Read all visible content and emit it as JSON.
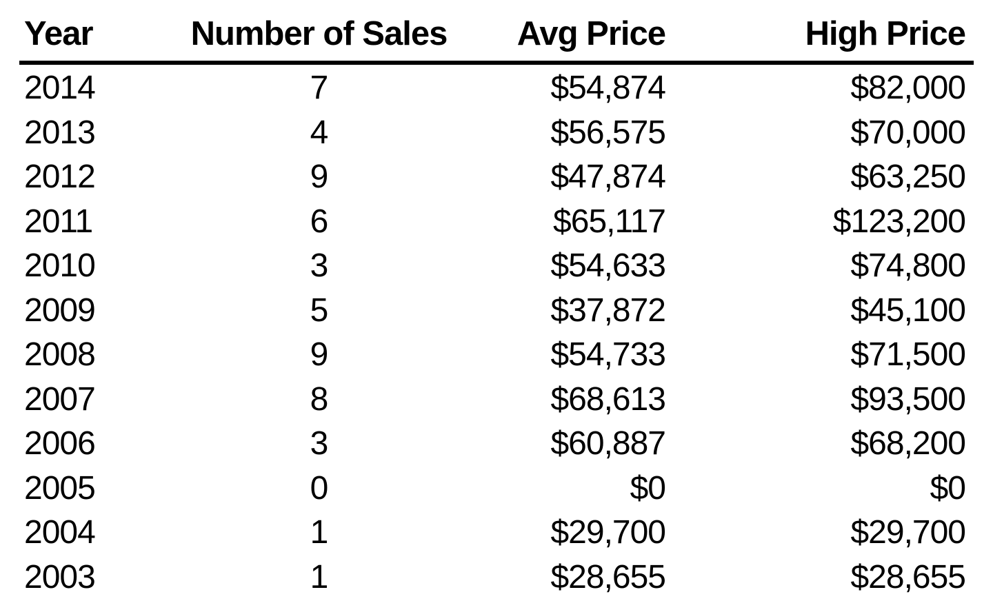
{
  "table": {
    "columns": [
      {
        "label": "Year"
      },
      {
        "label": "Number of Sales"
      },
      {
        "label": "Avg Price"
      },
      {
        "label": "High Price"
      }
    ],
    "rows": [
      {
        "year": "2014",
        "sales": "7",
        "avg_price": "$54,874",
        "high_price": "$82,000"
      },
      {
        "year": "2013",
        "sales": "4",
        "avg_price": "$56,575",
        "high_price": "$70,000"
      },
      {
        "year": "2012",
        "sales": "9",
        "avg_price": "$47,874",
        "high_price": "$63,250"
      },
      {
        "year": "2011",
        "sales": "6",
        "avg_price": "$65,117",
        "high_price": "$123,200"
      },
      {
        "year": "2010",
        "sales": "3",
        "avg_price": "$54,633",
        "high_price": "$74,800"
      },
      {
        "year": "2009",
        "sales": "5",
        "avg_price": "$37,872",
        "high_price": "$45,100"
      },
      {
        "year": "2008",
        "sales": "9",
        "avg_price": "$54,733",
        "high_price": "$71,500"
      },
      {
        "year": "2007",
        "sales": "8",
        "avg_price": "$68,613",
        "high_price": "$93,500"
      },
      {
        "year": "2006",
        "sales": "3",
        "avg_price": "$60,887",
        "high_price": "$68,200"
      },
      {
        "year": "2005",
        "sales": "0",
        "avg_price": "$0",
        "high_price": "$0"
      },
      {
        "year": "2004",
        "sales": "1",
        "avg_price": "$29,700",
        "high_price": "$29,700"
      },
      {
        "year": "2003",
        "sales": "1",
        "avg_price": "$28,655",
        "high_price": "$28,655"
      }
    ]
  },
  "chart_data": {
    "type": "table",
    "title": "",
    "columns": [
      "Year",
      "Number of Sales",
      "Avg Price",
      "High Price"
    ],
    "rows": [
      [
        2014,
        7,
        54874,
        82000
      ],
      [
        2013,
        4,
        56575,
        70000
      ],
      [
        2012,
        9,
        47874,
        63250
      ],
      [
        2011,
        6,
        65117,
        123200
      ],
      [
        2010,
        3,
        54633,
        74800
      ],
      [
        2009,
        5,
        37872,
        45100
      ],
      [
        2008,
        9,
        54733,
        71500
      ],
      [
        2007,
        8,
        68613,
        93500
      ],
      [
        2006,
        3,
        60887,
        68200
      ],
      [
        2005,
        0,
        0,
        0
      ],
      [
        2004,
        1,
        29700,
        29700
      ],
      [
        2003,
        1,
        28655,
        28655
      ]
    ]
  },
  "colors": {
    "background": "#ffffff",
    "text": "#000000",
    "rule": "#000000"
  }
}
